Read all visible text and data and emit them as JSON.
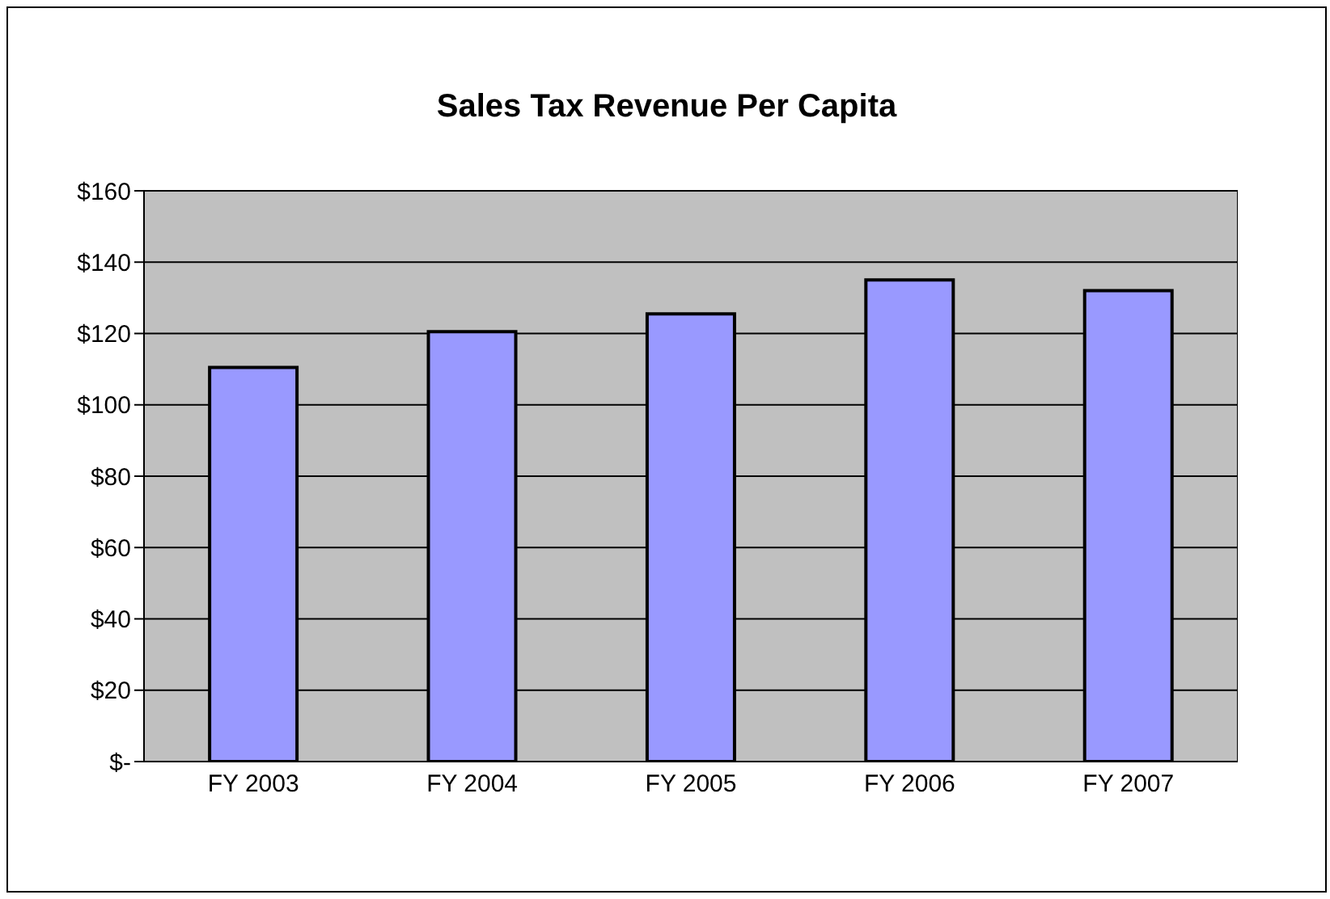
{
  "chart_data": {
    "type": "bar",
    "title": "Sales Tax Revenue Per Capita",
    "categories": [
      "FY 2003",
      "FY 2004",
      "FY 2005",
      "FY 2006",
      "FY 2007"
    ],
    "values": [
      110.5,
      120.5,
      125.5,
      135,
      132
    ],
    "color": "#9999ff",
    "ylim": [
      0,
      160
    ],
    "yticks": [
      {
        "value": 0,
        "label": "$-"
      },
      {
        "value": 20,
        "label": "$20"
      },
      {
        "value": 40,
        "label": "$40"
      },
      {
        "value": 60,
        "label": "$60"
      },
      {
        "value": 80,
        "label": "$80"
      },
      {
        "value": 100,
        "label": "$100"
      },
      {
        "value": 120,
        "label": "$120"
      },
      {
        "value": 140,
        "label": "$140"
      },
      {
        "value": 160,
        "label": "$160"
      }
    ],
    "grid": "y",
    "legend": false
  }
}
